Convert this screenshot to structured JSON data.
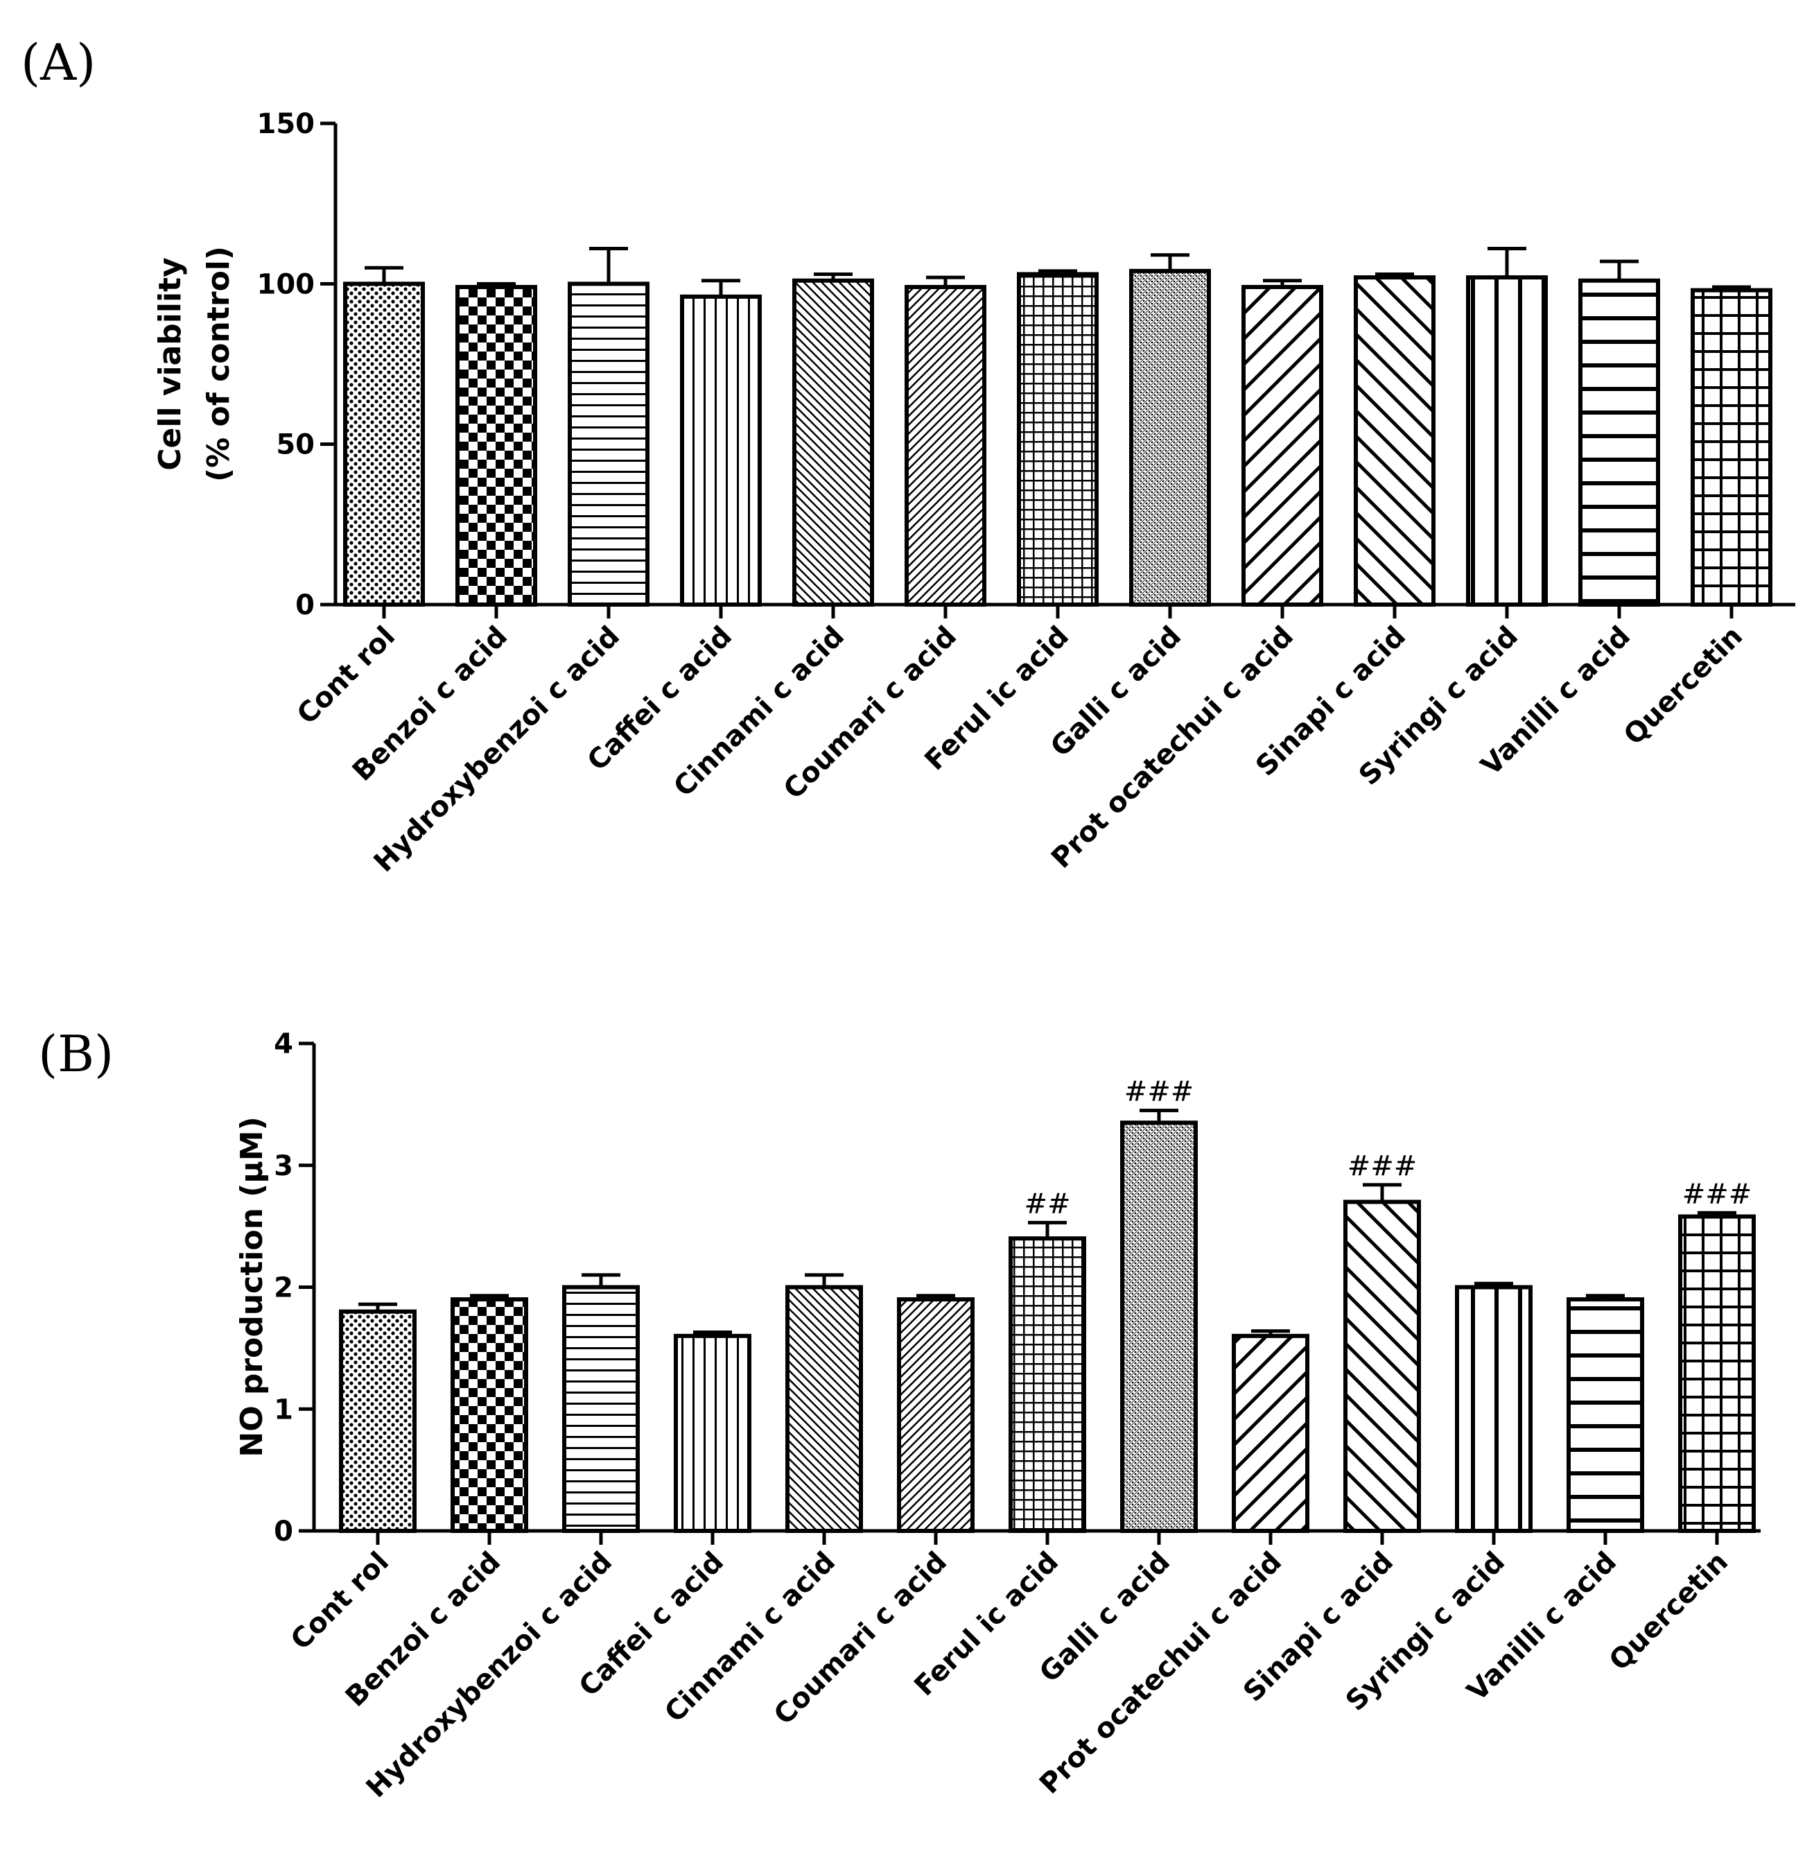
{
  "colors": {
    "ink": "#000000",
    "background": "#ffffff"
  },
  "chart_data": [
    {
      "type": "bar",
      "panel": "(A)",
      "ylabel": "Cell viability",
      "ylabel2": "(% of control)",
      "xlabel": "",
      "ylim": [
        0,
        150
      ],
      "yticks": [
        0,
        50,
        100,
        150
      ],
      "categories": [
        "Control",
        "Benzoic acid",
        "Hydroxybenzoic acid",
        "Caffeic acid",
        "Cinnamic acid",
        "Coumaric acid",
        "Ferulic acid",
        "Gallic acid",
        "Protocatechuic acid",
        "Sinapic acid",
        "Syringic acid",
        "Vanillic acid",
        "Quercetin"
      ],
      "tick_text": [
        "Cont rol",
        "Benzoi c acid",
        "Hydroxybenzoi c acid",
        "Caffei c acid",
        "Cinnami c acid",
        "Coumari c acid",
        "Ferul ic acid",
        "Galli c acid",
        "Prot ocatechui c acid",
        "Sinapi c acid",
        "Syringi c acid",
        "Vanilli c acid",
        "Quercetin"
      ],
      "values": [
        100,
        99,
        100,
        96,
        101,
        99,
        103,
        104,
        99,
        102,
        102,
        101,
        98
      ],
      "errors": [
        5,
        1,
        11,
        5,
        2,
        3,
        1,
        5,
        2,
        1,
        9,
        6,
        1
      ],
      "patterns": [
        "dots",
        "checker",
        "hlines",
        "vlines",
        "diagfine",
        "diagfine2",
        "grid",
        "dotsfine",
        "diagback",
        "diagfwd",
        "vlinesw",
        "hlinesw",
        "gridw"
      ],
      "annotations": [
        "",
        "",
        "",
        "",
        "",
        "",
        "",
        "",
        "",
        "",
        "",
        "",
        ""
      ]
    },
    {
      "type": "bar",
      "panel": "(B)",
      "ylabel": "NO production (μM)",
      "xlabel": "",
      "ylim": [
        0,
        4
      ],
      "yticks": [
        0,
        1,
        2,
        3,
        4
      ],
      "categories": [
        "Control",
        "Benzoic acid",
        "Hydroxybenzoic acid",
        "Caffeic acid",
        "Cinnamic acid",
        "Coumaric acid",
        "Ferulic acid",
        "Gallic acid",
        "Protocatechuic acid",
        "Sinapic acid",
        "Syringic acid",
        "Vanillic acid",
        "Quercetin"
      ],
      "tick_text": [
        "Cont rol",
        "Benzoi c acid",
        "Hydroxybenzoi c acid",
        "Caffei c acid",
        "Cinnami c acid",
        "Coumari c acid",
        "Ferul ic acid",
        "Galli c acid",
        "Prot ocatechui c acid",
        "Sinapi c acid",
        "Syringi c acid",
        "Vanilli c acid",
        "Quercetin"
      ],
      "values": [
        1.8,
        1.9,
        2.0,
        1.6,
        2.0,
        1.9,
        2.4,
        3.35,
        1.6,
        2.7,
        2.0,
        1.9,
        2.58
      ],
      "errors": [
        0.06,
        0.03,
        0.1,
        0.03,
        0.1,
        0.03,
        0.13,
        0.1,
        0.04,
        0.14,
        0.03,
        0.03,
        0.03
      ],
      "patterns": [
        "dots",
        "checker",
        "hlines",
        "vlines",
        "diagfine",
        "diagfine2",
        "grid",
        "dotsfine",
        "diagback",
        "diagfwd",
        "vlinesw",
        "hlinesw",
        "gridw"
      ],
      "annotations": [
        "",
        "",
        "",
        "",
        "",
        "",
        "##",
        "###",
        "",
        "###",
        "",
        "",
        "###"
      ]
    }
  ]
}
